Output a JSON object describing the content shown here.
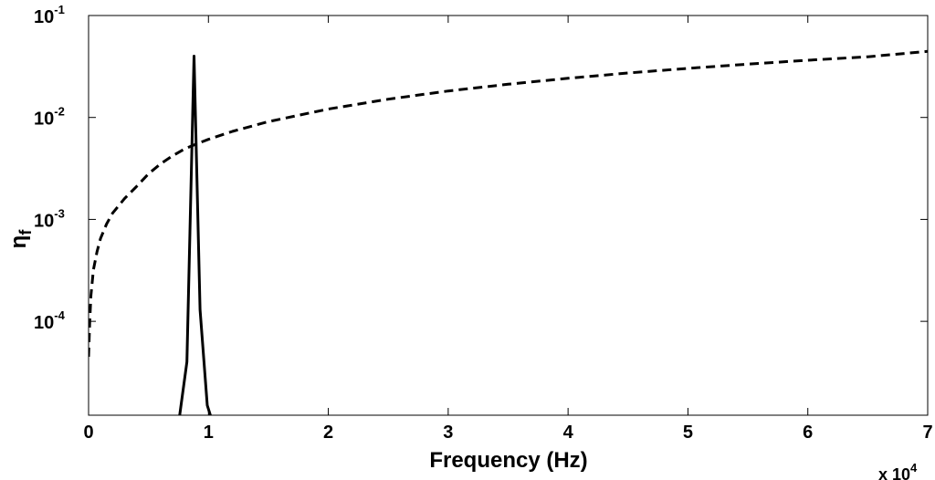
{
  "chart_data": {
    "type": "line",
    "title": "",
    "xlabel": "Frequency (Hz)",
    "ylabel": "η",
    "ylabel_subscript": "f",
    "x_multiplier_label": "x 10",
    "x_multiplier_exponent": "4",
    "xlim": [
      0,
      70000
    ],
    "ylim": [
      1.2e-05,
      0.1
    ],
    "y_scale": "log",
    "grid": false,
    "x_ticks": [
      {
        "value": 0,
        "label": "0"
      },
      {
        "value": 10000,
        "label": "1"
      },
      {
        "value": 20000,
        "label": "2"
      },
      {
        "value": 30000,
        "label": "3"
      },
      {
        "value": 40000,
        "label": "4"
      },
      {
        "value": 50000,
        "label": "5"
      },
      {
        "value": 60000,
        "label": "6"
      },
      {
        "value": 70000,
        "label": "7"
      }
    ],
    "y_ticks": [
      {
        "value": 0.0001,
        "base": "10",
        "exp": "-4"
      },
      {
        "value": 0.001,
        "base": "10",
        "exp": "-3"
      },
      {
        "value": 0.01,
        "base": "10",
        "exp": "-2"
      },
      {
        "value": 0.1,
        "base": "10",
        "exp": "-1"
      }
    ],
    "series": [
      {
        "style": "dashed",
        "color": "#000000",
        "x": [
          0,
          100,
          200,
          400,
          700,
          1000,
          1500,
          2000,
          3000,
          4000,
          5000,
          6000,
          7000,
          8000,
          9000,
          10000,
          12000,
          15000,
          20000,
          25000,
          30000,
          35000,
          40000,
          45000,
          50000,
          55000,
          60000,
          65000,
          70000
        ],
        "y": [
          4.5e-05,
          0.0001,
          0.00018,
          0.00032,
          0.00048,
          0.00065,
          0.0009,
          0.00115,
          0.0016,
          0.0021,
          0.0028,
          0.0035,
          0.0042,
          0.0049,
          0.0055,
          0.0061,
          0.0073,
          0.0091,
          0.0121,
          0.0151,
          0.0182,
          0.0212,
          0.0242,
          0.0273,
          0.0303,
          0.0333,
          0.0364,
          0.0394,
          0.0445
        ]
      },
      {
        "style": "solid",
        "color": "#000000",
        "x": [
          7600,
          8200,
          8800,
          9300,
          9900,
          10500
        ],
        "y": [
          1.2e-05,
          4e-05,
          0.04,
          0.00013,
          1.5e-05,
          9e-06
        ]
      }
    ]
  }
}
